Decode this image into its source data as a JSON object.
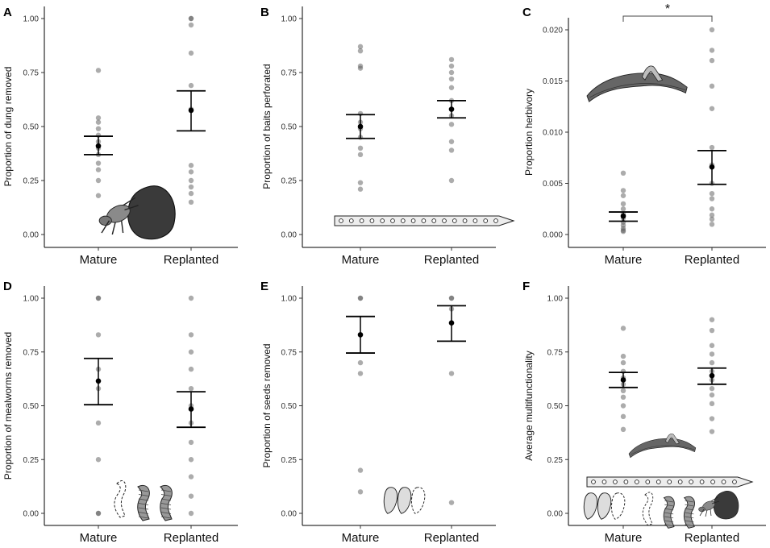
{
  "figure": {
    "title": "",
    "description_free": true
  },
  "chart_data": [
    {
      "type": "scatter",
      "panel": "A",
      "ylabel": "Proportion of dung removed",
      "xlabel": "",
      "categories": [
        "Mature",
        "Replanted"
      ],
      "ylim": [
        0,
        1
      ],
      "yticks": [
        0,
        0.25,
        0.5,
        0.75,
        1
      ],
      "ytick_labels": [
        "0.00",
        "0.25",
        "0.50",
        "0.75",
        "1.00"
      ],
      "points": [
        [
          0.76,
          0.54,
          0.52,
          0.49,
          0.46,
          0.43,
          0.4,
          0.37,
          0.33,
          0.3,
          0.25,
          0.18
        ],
        [
          1.0,
          1.0,
          0.97,
          0.84,
          0.69,
          0.58,
          0.32,
          0.29,
          0.25,
          0.22,
          0.19,
          0.15
        ]
      ],
      "means": [
        0.41,
        0.575
      ],
      "err_low": [
        0.37,
        0.48
      ],
      "err_high": [
        0.455,
        0.665
      ],
      "illustration": "dung-beetle-icon"
    },
    {
      "type": "scatter",
      "panel": "B",
      "ylabel": "Proportion of baits perforated",
      "xlabel": "",
      "categories": [
        "Mature",
        "Replanted"
      ],
      "ylim": [
        0,
        1
      ],
      "yticks": [
        0,
        0.25,
        0.5,
        0.75,
        1
      ],
      "ytick_labels": [
        "0.00",
        "0.25",
        "0.50",
        "0.75",
        "1.00"
      ],
      "points": [
        [
          0.87,
          0.85,
          0.78,
          0.77,
          0.56,
          0.52,
          0.49,
          0.45,
          0.4,
          0.37,
          0.24,
          0.21
        ],
        [
          0.81,
          0.78,
          0.75,
          0.72,
          0.68,
          0.62,
          0.58,
          0.55,
          0.51,
          0.43,
          0.39,
          0.25
        ]
      ],
      "means": [
        0.5,
        0.58
      ],
      "err_low": [
        0.445,
        0.54
      ],
      "err_high": [
        0.555,
        0.62
      ],
      "illustration": "bait-strip-icon"
    },
    {
      "type": "scatter",
      "panel": "C",
      "ylabel": "Proportion herbivory",
      "xlabel": "",
      "categories": [
        "Mature",
        "Replanted"
      ],
      "ylim": [
        0,
        0.0205
      ],
      "yticks": [
        0,
        0.005,
        0.01,
        0.015,
        0.02
      ],
      "ytick_labels": [
        "0.000",
        "0.005",
        "0.010",
        "0.015",
        "0.020"
      ],
      "points": [
        [
          0.006,
          0.0043,
          0.0038,
          0.003,
          0.0025,
          0.002,
          0.0016,
          0.0012,
          0.0009,
          0.0006,
          0.0004,
          0.0003
        ],
        [
          0.02,
          0.018,
          0.017,
          0.0145,
          0.0123,
          0.0085,
          0.0068,
          0.005,
          0.004,
          0.0035,
          0.0025,
          0.0019,
          0.0015,
          0.001
        ]
      ],
      "means": [
        0.0018,
        0.0066
      ],
      "err_low": [
        0.0013,
        0.0049
      ],
      "err_high": [
        0.0022,
        0.0082
      ],
      "significance": "*",
      "illustration": "leaf-icon"
    },
    {
      "type": "scatter",
      "panel": "D",
      "ylabel": "Proportion of mealworms removed",
      "xlabel": "",
      "categories": [
        "Mature",
        "Replanted"
      ],
      "ylim": [
        0,
        1
      ],
      "yticks": [
        0,
        0.25,
        0.5,
        0.75,
        1
      ],
      "ytick_labels": [
        "0.00",
        "0.25",
        "0.50",
        "0.75",
        "1.00"
      ],
      "points": [
        [
          1.0,
          1.0,
          0.83,
          0.67,
          0.58,
          0.42,
          0.25,
          0.0,
          0.0
        ],
        [
          1.0,
          0.83,
          0.75,
          0.67,
          0.58,
          0.5,
          0.42,
          0.33,
          0.25,
          0.17,
          0.08,
          0.0
        ]
      ],
      "means": [
        0.615,
        0.485
      ],
      "err_low": [
        0.505,
        0.4
      ],
      "err_high": [
        0.72,
        0.565
      ],
      "illustration": "mealworm-icon"
    },
    {
      "type": "scatter",
      "panel": "E",
      "ylabel": "Proportion of seeds removed",
      "xlabel": "",
      "categories": [
        "Mature",
        "Replanted"
      ],
      "ylim": [
        0,
        1
      ],
      "yticks": [
        0,
        0.25,
        0.5,
        0.75,
        1
      ],
      "ytick_labels": [
        "0.00",
        "0.25",
        "0.50",
        "0.75",
        "1.00"
      ],
      "points": [
        [
          1.0,
          1.0,
          0.7,
          0.65,
          0.2,
          0.1
        ],
        [
          1.0,
          1.0,
          0.95,
          0.65,
          0.05
        ]
      ],
      "means": [
        0.83,
        0.885
      ],
      "err_low": [
        0.745,
        0.8
      ],
      "err_high": [
        0.915,
        0.965
      ],
      "illustration": "seed-icon"
    },
    {
      "type": "scatter",
      "panel": "F",
      "ylabel": "Average multifunctionality",
      "xlabel": "",
      "categories": [
        "Mature",
        "Replanted"
      ],
      "ylim": [
        0,
        1
      ],
      "yticks": [
        0,
        0.25,
        0.5,
        0.75,
        1
      ],
      "ytick_labels": [
        "0.00",
        "0.25",
        "0.50",
        "0.75",
        "1.00"
      ],
      "points": [
        [
          0.86,
          0.73,
          0.7,
          0.66,
          0.63,
          0.6,
          0.57,
          0.54,
          0.5,
          0.45,
          0.39
        ],
        [
          0.9,
          0.85,
          0.78,
          0.74,
          0.7,
          0.66,
          0.62,
          0.58,
          0.55,
          0.51,
          0.44,
          0.38
        ]
      ],
      "means": [
        0.62,
        0.64
      ],
      "err_low": [
        0.585,
        0.6
      ],
      "err_high": [
        0.655,
        0.675
      ],
      "illustration": "combined-functions-icon"
    }
  ]
}
